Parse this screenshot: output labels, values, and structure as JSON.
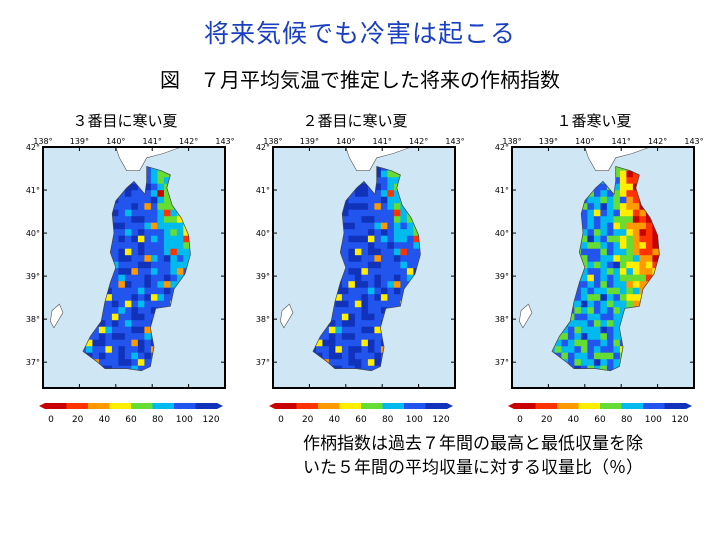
{
  "page": {
    "title": "将来気候でも冷害は起こる",
    "subtitle": "図　７月平均気温で推定した将来の作柄指数",
    "note_line1": "作柄指数は過去７年間の最高と最低収量を除",
    "note_line2": "いた５年間の平均収量に対する収量比（％）"
  },
  "panels": [
    {
      "label": "３番目に寒い夏",
      "severity": 0.25
    },
    {
      "label": "２番目に寒い夏",
      "severity": 0.15
    },
    {
      "label": "１番寒い夏",
      "severity": 1.0
    }
  ],
  "map": {
    "lon_ticks": [
      "138°",
      "139°",
      "140°",
      "141°",
      "142°",
      "143°"
    ],
    "lat_ticks": [
      "42°",
      "41°",
      "40°",
      "39°",
      "38°",
      "37°"
    ]
  },
  "colorbar": {
    "ticks": [
      "0",
      "20",
      "40",
      "60",
      "80",
      "100",
      "120"
    ],
    "colors": [
      "#c80000",
      "#ff3300",
      "#ff9900",
      "#ffee00",
      "#66dd33",
      "#00bbee",
      "#2255ee",
      "#1133bb"
    ]
  }
}
